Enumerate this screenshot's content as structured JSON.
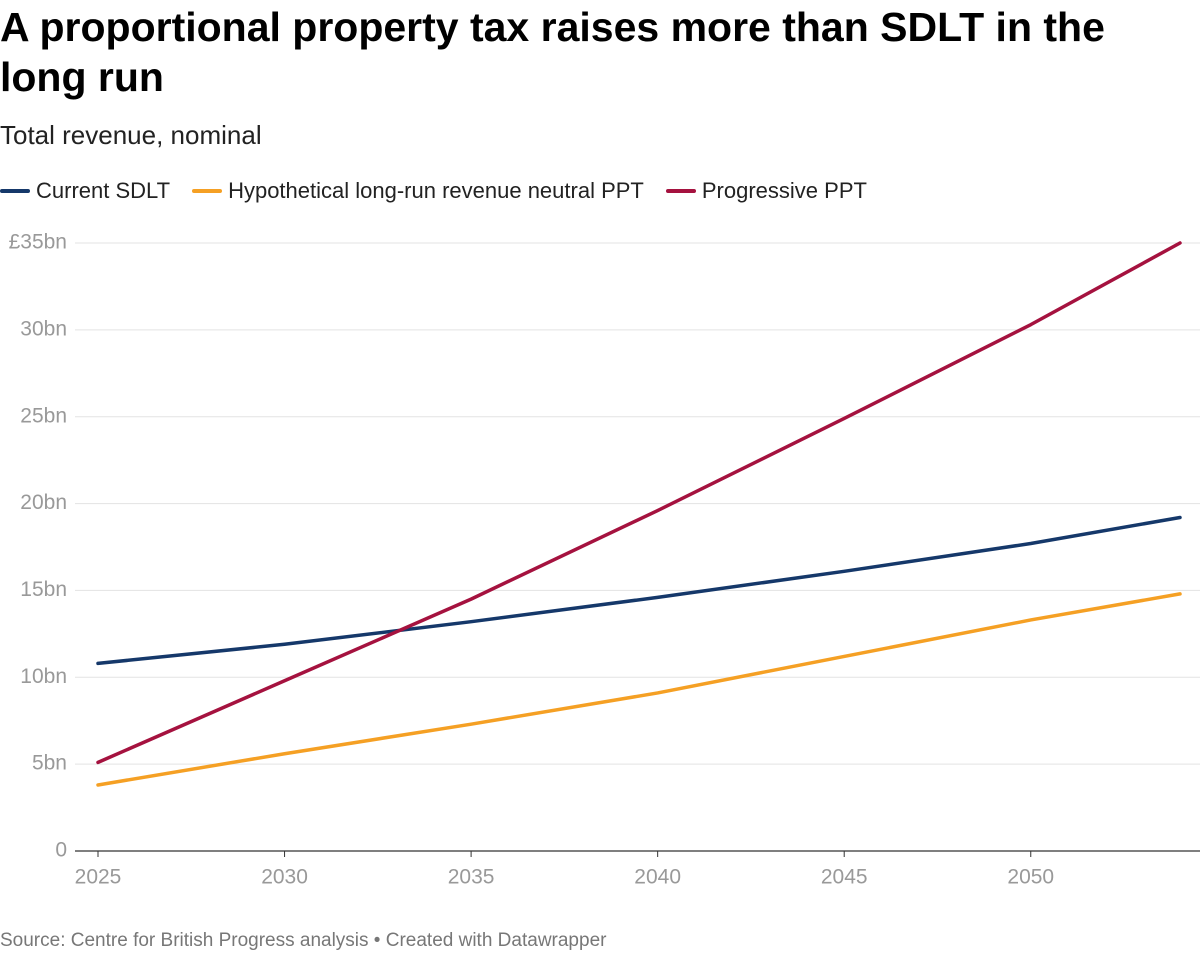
{
  "chart_data": {
    "type": "line",
    "title": "A proportional property tax raises more than SDLT in the long run",
    "subtitle": "Total revenue, nominal",
    "source": "Source: Centre for British Progress analysis • Created with Datawrapper",
    "x": [
      2025,
      2030,
      2035,
      2040,
      2045,
      2050,
      2054
    ],
    "xlim": [
      2025,
      2054
    ],
    "xticks": [
      2025,
      2030,
      2035,
      2040,
      2045,
      2050
    ],
    "ylim": [
      0,
      35
    ],
    "yticks": [
      0,
      {
        "value": 5,
        "label": "5bn"
      },
      {
        "value": 10,
        "label": "10bn"
      },
      {
        "value": 15,
        "label": "15bn"
      },
      {
        "value": 20,
        "label": "20bn"
      },
      {
        "value": 25,
        "label": "25bn"
      },
      {
        "value": 30,
        "label": "30bn"
      },
      {
        "value": 35,
        "label": "£35bn"
      }
    ],
    "grid": true,
    "series": [
      {
        "name": "Current SDLT",
        "color": "#15386a",
        "values": [
          10.8,
          11.9,
          13.2,
          14.6,
          16.1,
          17.7,
          19.2
        ]
      },
      {
        "name": "Hypothetical long-run revenue neutral PPT",
        "color": "#f5a024",
        "values": [
          3.8,
          5.6,
          7.3,
          9.1,
          11.2,
          13.3,
          14.8
        ]
      },
      {
        "name": "Progressive PPT",
        "color": "#a5123f",
        "values": [
          5.1,
          9.8,
          14.5,
          19.6,
          24.9,
          30.3,
          35.0
        ]
      }
    ]
  }
}
